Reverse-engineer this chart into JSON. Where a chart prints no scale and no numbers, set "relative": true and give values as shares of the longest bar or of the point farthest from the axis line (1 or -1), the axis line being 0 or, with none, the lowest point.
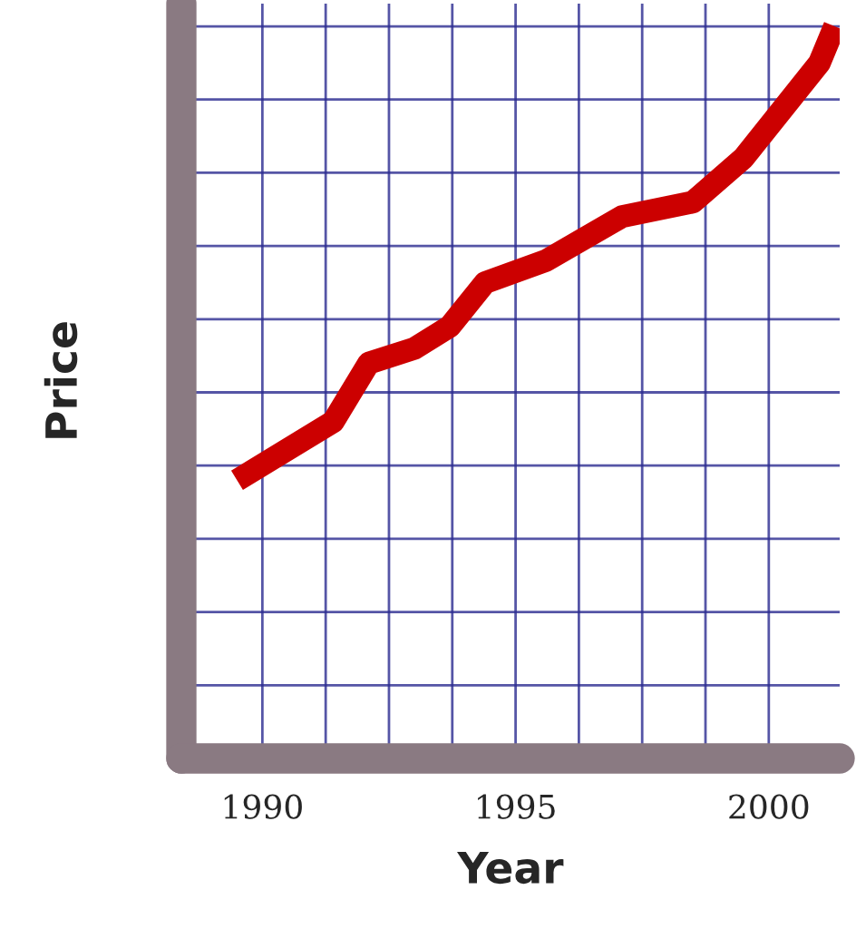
{
  "chart_data": {
    "type": "line",
    "xlabel": "Year",
    "ylabel": "Price",
    "relative": true,
    "x": [
      1989.5,
      1991.4,
      1992.1,
      1993.0,
      1993.7,
      1994.4,
      1995.6,
      1997.1,
      1998.5,
      1999.5,
      2001.0,
      2001.3
    ],
    "series": [
      {
        "color": "#cc0000",
        "values": [
          0.38,
          0.46,
          0.54,
          0.56,
          0.59,
          0.65,
          0.68,
          0.74,
          0.76,
          0.82,
          0.95,
          1.0
        ]
      }
    ],
    "xlim": [
      1988.4,
      2001.4
    ],
    "xticks": [
      1990,
      {
        "value": 1991.25,
        "label": null
      },
      {
        "value": 1992.5,
        "label": null
      },
      {
        "value": 1993.75,
        "label": null
      },
      1995,
      {
        "value": 1996.25,
        "label": null
      },
      {
        "value": 1997.5,
        "label": null
      },
      {
        "value": 1998.75,
        "label": null
      },
      2000
    ],
    "tick_labels": "x",
    "grid": true,
    "line_style": "solid",
    "marker": "none"
  }
}
